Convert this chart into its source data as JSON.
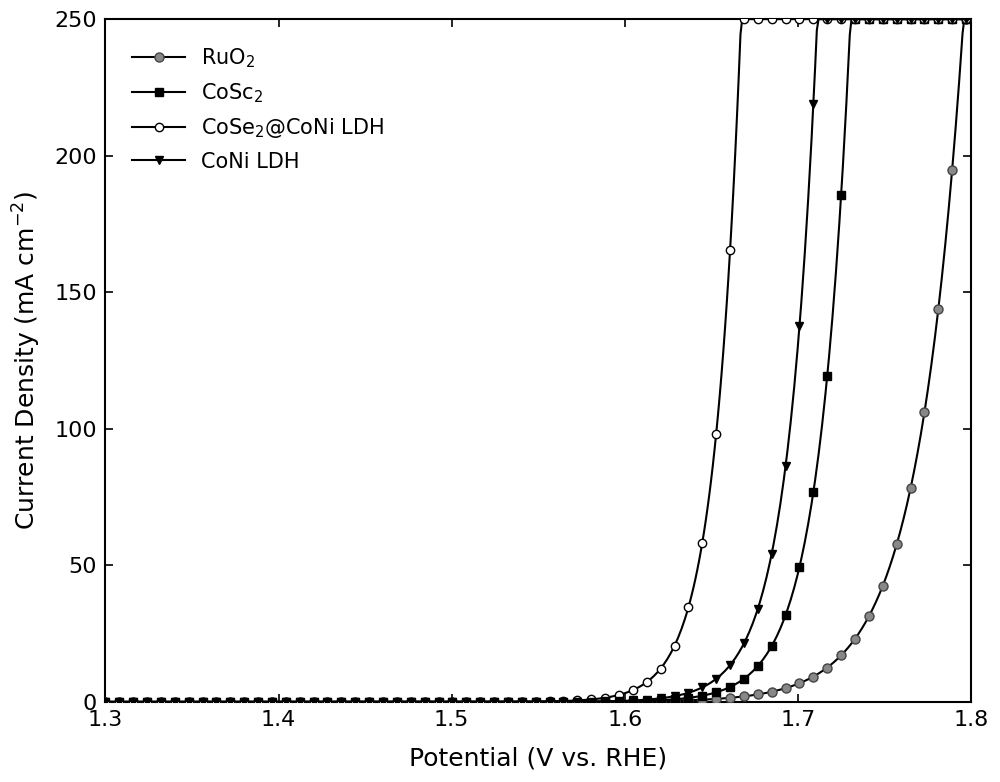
{
  "xlabel": "Potential (V vs. RHE)",
  "ylabel": "Current Density (mA cm$^{-2}$)",
  "xlim": [
    1.3,
    1.8
  ],
  "ylim": [
    0,
    250
  ],
  "xticks": [
    1.3,
    1.4,
    1.5,
    1.6,
    1.7,
    1.8
  ],
  "yticks": [
    0,
    50,
    100,
    150,
    200,
    250
  ],
  "background_color": "#ffffff",
  "series": [
    {
      "label": "RuO$_2$",
      "line_color": "#000000",
      "marker": "o",
      "marker_facecolor": "#888888",
      "marker_edgecolor": "#444444",
      "markersize": 6.5,
      "onset": 1.455,
      "A": 0.0006,
      "alpha": 38.0
    },
    {
      "label": "CoSc$_2$",
      "line_color": "#000000",
      "marker": "s",
      "marker_facecolor": "#000000",
      "marker_edgecolor": "#000000",
      "markersize": 5.5,
      "onset": 1.495,
      "A": 0.0006,
      "alpha": 55.0
    },
    {
      "label": "CoSe$_2$@CoNi LDH",
      "line_color": "#000000",
      "marker": "o",
      "marker_facecolor": "#ffffff",
      "marker_edgecolor": "#000000",
      "markersize": 6.0,
      "onset": 1.468,
      "A": 0.0006,
      "alpha": 65.0
    },
    {
      "label": "CoNi LDH",
      "line_color": "#000000",
      "marker": "v",
      "marker_facecolor": "#000000",
      "marker_edgecolor": "#000000",
      "markersize": 5.5,
      "onset": 1.488,
      "A": 0.0006,
      "alpha": 58.0
    }
  ],
  "fontsize_label": 18,
  "fontsize_tick": 16,
  "fontsize_legend": 15,
  "linewidth": 1.5,
  "n_points": 500
}
